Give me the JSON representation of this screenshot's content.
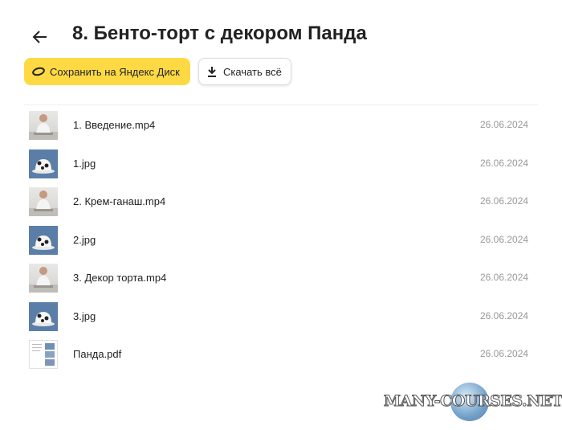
{
  "header": {
    "title": "8. Бенто-торт с декором Панда"
  },
  "buttons": {
    "save": "Сохранить на Яндекс Диск",
    "download": "Скачать всё"
  },
  "files": [
    {
      "name": "1. Введение.mp4",
      "date": "26.06.2024",
      "kind": "video"
    },
    {
      "name": "1.jpg",
      "date": "26.06.2024",
      "kind": "image"
    },
    {
      "name": "2. Крем-ганаш.mp4",
      "date": "26.06.2024",
      "kind": "video"
    },
    {
      "name": "2.jpg",
      "date": "26.06.2024",
      "kind": "image"
    },
    {
      "name": "3. Декор торта.mp4",
      "date": "26.06.2024",
      "kind": "video"
    },
    {
      "name": "3.jpg",
      "date": "26.06.2024",
      "kind": "image"
    },
    {
      "name": "Панда.pdf",
      "date": "26.06.2024",
      "kind": "pdf"
    }
  ],
  "watermark": {
    "text": "MANY-COURSES.NET"
  }
}
